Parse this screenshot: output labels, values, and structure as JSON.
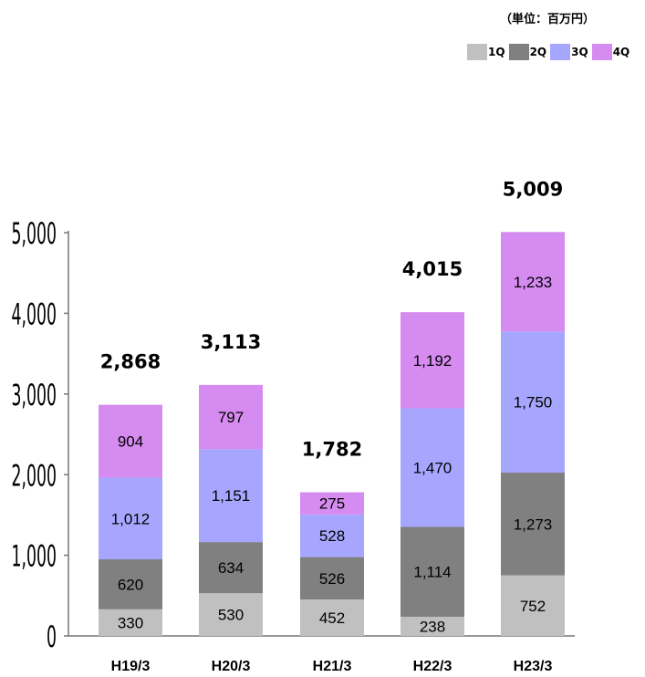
{
  "chart_data": {
    "type": "bar",
    "stacked": true,
    "unit_label": "（単位：百万円）",
    "categories": [
      "H19/3",
      "H20/3",
      "H21/3",
      "H22/3",
      "H23/3"
    ],
    "series": [
      {
        "name": "1Q",
        "color": "#c0c0c0",
        "values": [
          330,
          530,
          452,
          238,
          752
        ]
      },
      {
        "name": "2Q",
        "color": "#808080",
        "values": [
          620,
          634,
          526,
          1114,
          1273
        ]
      },
      {
        "name": "3Q",
        "color": "#a6a6ff",
        "values": [
          1012,
          1151,
          528,
          1470,
          1750
        ]
      },
      {
        "name": "4Q",
        "color": "#d68bf0",
        "values": [
          904,
          797,
          275,
          1192,
          1233
        ]
      }
    ],
    "totals": [
      "2,868",
      "3,113",
      "1,782",
      "4,015",
      "5,009"
    ],
    "yticks": [
      "0",
      "1,000",
      "2,000",
      "3,000",
      "4,000",
      "5,000"
    ],
    "ylim": [
      0,
      5000
    ],
    "legend_position": "top-right",
    "grid": false
  }
}
